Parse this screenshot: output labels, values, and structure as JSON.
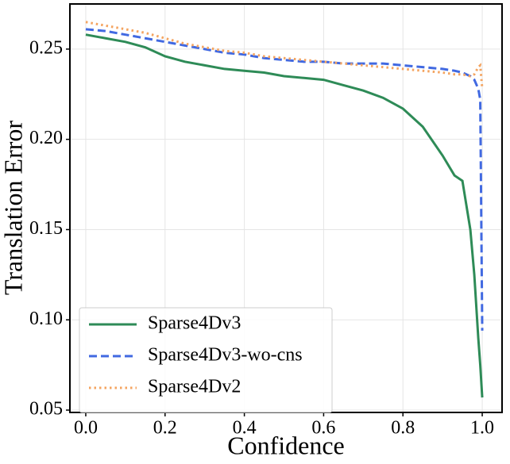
{
  "chart_data": {
    "type": "line",
    "xlabel": "Confidence",
    "ylabel": "Translation Error",
    "x": [
      0,
      0.05,
      0.1,
      0.15,
      0.2,
      0.25,
      0.3,
      0.35,
      0.4,
      0.45,
      0.5,
      0.55,
      0.6,
      0.65,
      0.7,
      0.75,
      0.8,
      0.85,
      0.9,
      0.93,
      0.95,
      0.97,
      0.98,
      0.99,
      0.995,
      1.0
    ],
    "series": [
      {
        "name": "Sparse4Dv3",
        "color": "#2e8b57",
        "dash": "solid",
        "values": [
          0.258,
          0.256,
          0.254,
          0.251,
          0.246,
          0.243,
          0.241,
          0.239,
          0.238,
          0.237,
          0.235,
          0.234,
          0.233,
          0.23,
          0.227,
          0.223,
          0.217,
          0.207,
          0.191,
          0.18,
          0.177,
          0.15,
          0.125,
          0.09,
          0.075,
          0.057
        ]
      },
      {
        "name": "Sparse4Dv3-wo-cns",
        "color": "#4169e1",
        "dash": "dashed",
        "values": [
          0.261,
          0.26,
          0.258,
          0.256,
          0.254,
          0.252,
          0.25,
          0.248,
          0.247,
          0.245,
          0.244,
          0.243,
          0.243,
          0.242,
          0.242,
          0.242,
          0.241,
          0.24,
          0.239,
          0.238,
          0.237,
          0.235,
          0.233,
          0.228,
          0.222,
          0.094
        ]
      },
      {
        "name": "Sparse4Dv2",
        "color": "#f4a460",
        "dash": "dotted",
        "values": [
          0.265,
          0.263,
          0.261,
          0.259,
          0.256,
          0.253,
          0.251,
          0.249,
          0.248,
          0.246,
          0.245,
          0.244,
          0.243,
          0.242,
          0.241,
          0.24,
          0.239,
          0.238,
          0.237,
          0.236,
          0.236,
          0.235,
          0.236,
          0.24,
          0.241,
          0.228
        ]
      }
    ],
    "xlim": [
      -0.04,
      1.05
    ],
    "ylim": [
      0.0487,
      0.275
    ],
    "xticks": [
      {
        "value": 0,
        "label": "0.0"
      },
      0.2,
      0.4,
      0.6,
      0.8,
      {
        "value": 1,
        "label": "1.0"
      }
    ],
    "yticks": [
      0.05,
      {
        "value": 0.1,
        "label": "0.10"
      },
      0.15,
      {
        "value": 0.2,
        "label": "0.20"
      },
      0.25
    ],
    "grid": true,
    "legend": "lower left"
  }
}
